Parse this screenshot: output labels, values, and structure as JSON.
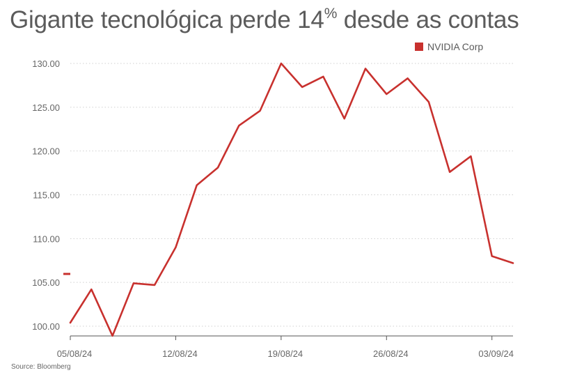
{
  "title_main": "Gigante tecnológica perde 14",
  "title_pct": "%",
  "title_rest": " desde as contas",
  "source": "Source: Bloomberg",
  "colors": {
    "series": "#c8312e",
    "grid": "#cfcfcf",
    "axis": "#555555"
  },
  "chart_data": {
    "type": "line",
    "title": "Gigante tecnológica perde 14% desde as contas",
    "xlabel": "",
    "ylabel": "",
    "ylim": [
      99.0,
      130.5
    ],
    "y_ticks": [
      "100.00",
      "105.00",
      "110.00",
      "115.00",
      "120.00",
      "125.00",
      "130.00"
    ],
    "y_tick_values": [
      100,
      105,
      110,
      115,
      120,
      125,
      130
    ],
    "x_ticks": [
      "05/08/24",
      "12/08/24",
      "19/08/24",
      "26/08/24",
      "03/09/24"
    ],
    "legend_position": "top-right",
    "grid": true,
    "reference_marker": 107.0,
    "series": [
      {
        "name": "NVIDIA Corp",
        "color": "#c8312e",
        "x": [
          "05/08/24",
          "06/08/24",
          "07/08/24",
          "08/08/24",
          "09/08/24",
          "12/08/24",
          "13/08/24",
          "14/08/24",
          "15/08/24",
          "16/08/24",
          "19/08/24",
          "20/08/24",
          "21/08/24",
          "22/08/24",
          "23/08/24",
          "26/08/24",
          "27/08/24",
          "28/08/24",
          "29/08/24",
          "30/08/24",
          "03/09/24",
          "04/09/24"
        ],
        "values": [
          100.4,
          104.2,
          98.9,
          104.9,
          104.7,
          109.0,
          116.1,
          118.1,
          122.9,
          124.6,
          130.0,
          127.3,
          128.5,
          123.7,
          129.4,
          126.5,
          128.3,
          125.6,
          117.6,
          119.4,
          108.0,
          107.2
        ]
      }
    ]
  }
}
